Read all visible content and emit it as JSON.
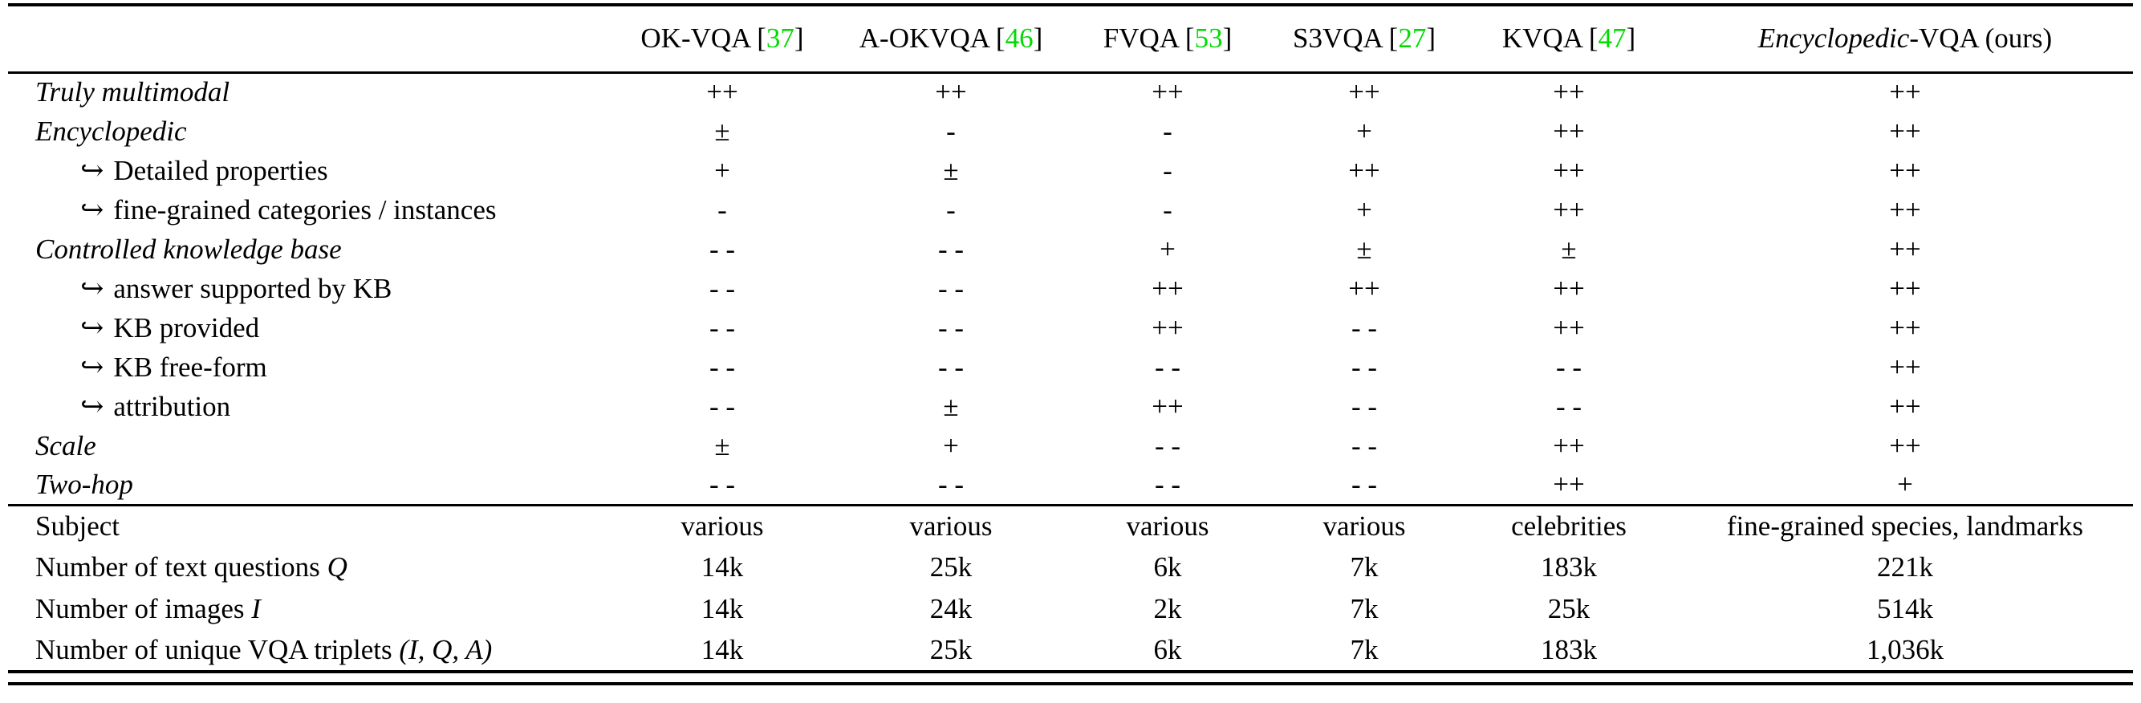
{
  "page": {
    "background_color": "#ffffff",
    "text_color": "#000000",
    "cite_color": "#00dc00"
  },
  "table": {
    "hook_symbol": "↪",
    "cite_brackets": [
      "[",
      "]"
    ],
    "header": {
      "columns": [
        {
          "label": "OK-VQA",
          "cite": "37"
        },
        {
          "label": "A-OKVQA",
          "cite": "46"
        },
        {
          "label": "FVQA",
          "cite": "53"
        },
        {
          "label": "S3VQA",
          "cite": "27"
        },
        {
          "label": "KVQA",
          "cite": "47"
        },
        {
          "label_italic": "Encyclopedic",
          "label_rest": "-VQA (ours)"
        }
      ]
    },
    "feature_rows": [
      {
        "label": "Truly multimodal",
        "italic": true,
        "indent": false,
        "values": [
          "++",
          "++",
          "++",
          "++",
          "++",
          "++"
        ]
      },
      {
        "label": "Encyclopedic",
        "italic": true,
        "indent": false,
        "values": [
          "±",
          "-",
          "-",
          "+",
          "++",
          "++"
        ]
      },
      {
        "label": "Detailed properties",
        "italic": false,
        "indent": true,
        "values": [
          "+",
          "±",
          "-",
          "++",
          "++",
          "++"
        ]
      },
      {
        "label": "fine-grained categories / instances",
        "italic": false,
        "indent": true,
        "values": [
          "-",
          "-",
          "-",
          "+",
          "++",
          "++"
        ]
      },
      {
        "label": "Controlled knowledge base",
        "italic": true,
        "indent": false,
        "values": [
          "- -",
          "- -",
          "+",
          "±",
          "±",
          "++"
        ]
      },
      {
        "label": "answer supported by KB",
        "italic": false,
        "indent": true,
        "values": [
          "- -",
          "- -",
          "++",
          "++",
          "++",
          "++"
        ]
      },
      {
        "label": "KB provided",
        "italic": false,
        "indent": true,
        "values": [
          "- -",
          "- -",
          "++",
          "- -",
          "++",
          "++"
        ]
      },
      {
        "label": "KB free-form",
        "italic": false,
        "indent": true,
        "values": [
          "- -",
          "- -",
          "- -",
          "- -",
          "- -",
          "++"
        ]
      },
      {
        "label": "attribution",
        "italic": false,
        "indent": true,
        "values": [
          "- -",
          "±",
          "++",
          "- -",
          "- -",
          "++"
        ]
      },
      {
        "label": "Scale",
        "italic": true,
        "indent": false,
        "values": [
          "±",
          "+",
          "- -",
          "- -",
          "++",
          "++"
        ]
      },
      {
        "label": "Two-hop",
        "italic": true,
        "indent": false,
        "values": [
          "- -",
          "- -",
          "- -",
          "- -",
          "++",
          "+"
        ]
      }
    ],
    "stat_rows": [
      {
        "label": "Subject",
        "math": "",
        "values": [
          "various",
          "various",
          "various",
          "various",
          "celebrities",
          "fine-grained species, landmarks"
        ]
      },
      {
        "label": "Number of text questions ",
        "math": "Q",
        "values": [
          "14k",
          "25k",
          "6k",
          "7k",
          "183k",
          "221k"
        ]
      },
      {
        "label": "Number of images ",
        "math": "I",
        "values": [
          "14k",
          "24k",
          "2k",
          "7k",
          "25k",
          "514k"
        ]
      },
      {
        "label": "Number of unique VQA triplets ",
        "math": "(I, Q, A)",
        "values": [
          "14k",
          "25k",
          "6k",
          "7k",
          "183k",
          "1,036k"
        ]
      }
    ]
  }
}
